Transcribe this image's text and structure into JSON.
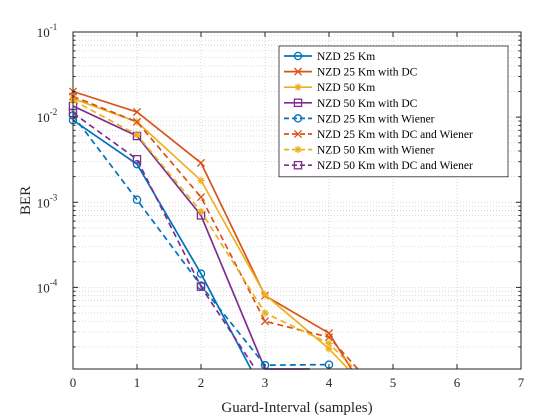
{
  "chart_data": {
    "type": "line",
    "xlabel": "Guard-Interval (samples)",
    "ylabel": "BER",
    "xlim": [
      0,
      7
    ],
    "ylim": [
      1.1e-05,
      0.1
    ],
    "yscale": "log",
    "xticks": [
      0,
      1,
      2,
      3,
      4,
      5,
      6,
      7
    ],
    "xtick_labels": [
      "0",
      "1",
      "2",
      "3",
      "4",
      "5",
      "6",
      "7"
    ],
    "yticks": [
      0.0001,
      0.001,
      0.01,
      0.1
    ],
    "ytick_labels": [
      {
        "base": "10",
        "exp": "-4"
      },
      {
        "base": "10",
        "exp": "-3"
      },
      {
        "base": "10",
        "exp": "-2"
      },
      {
        "base": "10",
        "exp": "-1"
      }
    ],
    "grid": true,
    "minor_grid": true,
    "legend_position": "top-right",
    "series": [
      {
        "name": "NZD 25 Km",
        "color": "#0072BD",
        "dash": "solid",
        "marker": "circle",
        "x": [
          0,
          1,
          2,
          2.78
        ],
        "y": [
          0.0092,
          0.0028,
          0.000145,
          1.1e-05
        ],
        "markers": [
          true,
          true,
          true,
          false
        ]
      },
      {
        "name": "NZD 25 Km with DC",
        "color": "#D95319",
        "dash": "solid",
        "marker": "x",
        "x": [
          0,
          1,
          2,
          3,
          4,
          4.35
        ],
        "y": [
          0.02,
          0.0115,
          0.0029,
          8e-05,
          2.9e-05,
          1.1e-05
        ],
        "markers": [
          true,
          true,
          true,
          true,
          true,
          false
        ]
      },
      {
        "name": "NZD 50 Km",
        "color": "#EDB120",
        "dash": "solid",
        "marker": "star",
        "x": [
          0,
          1,
          2,
          3,
          4,
          4.3
        ],
        "y": [
          0.0165,
          0.0088,
          0.0018,
          8.2e-05,
          1.9e-05,
          1.1e-05
        ],
        "markers": [
          true,
          true,
          true,
          true,
          true,
          false
        ]
      },
      {
        "name": "NZD 50 Km with DC",
        "color": "#7E2F8E",
        "dash": "solid",
        "marker": "square",
        "x": [
          0,
          1,
          2,
          3,
          3.7
        ],
        "y": [
          0.0135,
          0.006,
          0.0007,
          1.1e-05,
          1.1e-05
        ],
        "markers": [
          true,
          true,
          true,
          false,
          false
        ]
      },
      {
        "name": "NZD 25 Km with Wiener",
        "color": "#0072BD",
        "dash": "dashed",
        "marker": "circle",
        "x": [
          0,
          1,
          2,
          3,
          4
        ],
        "y": [
          0.0105,
          0.00107,
          0.000105,
          1.22e-05,
          1.24e-05
        ],
        "markers": [
          true,
          true,
          true,
          true,
          true
        ]
      },
      {
        "name": "NZD 25 Km with DC and Wiener",
        "color": "#D95319",
        "dash": "dashed",
        "marker": "x",
        "x": [
          0,
          1,
          2,
          3,
          4,
          4.45
        ],
        "y": [
          0.0175,
          0.0088,
          0.00115,
          4e-05,
          2.6e-05,
          1.1e-05
        ],
        "markers": [
          true,
          true,
          true,
          true,
          true,
          false
        ]
      },
      {
        "name": "NZD 50 Km with Wiener",
        "color": "#EDB120",
        "dash": "dashed",
        "marker": "star",
        "x": [
          0,
          1,
          2,
          3,
          4,
          4.4
        ],
        "y": [
          0.0158,
          0.0062,
          0.00078,
          5e-05,
          2.2e-05,
          1.1e-05
        ],
        "markers": [
          true,
          true,
          true,
          true,
          true,
          false
        ]
      },
      {
        "name": "NZD 50 Km with DC and Wiener",
        "color": "#7E2F8E",
        "dash": "dashed",
        "marker": "square",
        "x": [
          0,
          1,
          2,
          2.85
        ],
        "y": [
          0.0112,
          0.0032,
          0.000102,
          1.1e-05
        ],
        "markers": [
          true,
          true,
          true,
          false
        ]
      }
    ]
  }
}
